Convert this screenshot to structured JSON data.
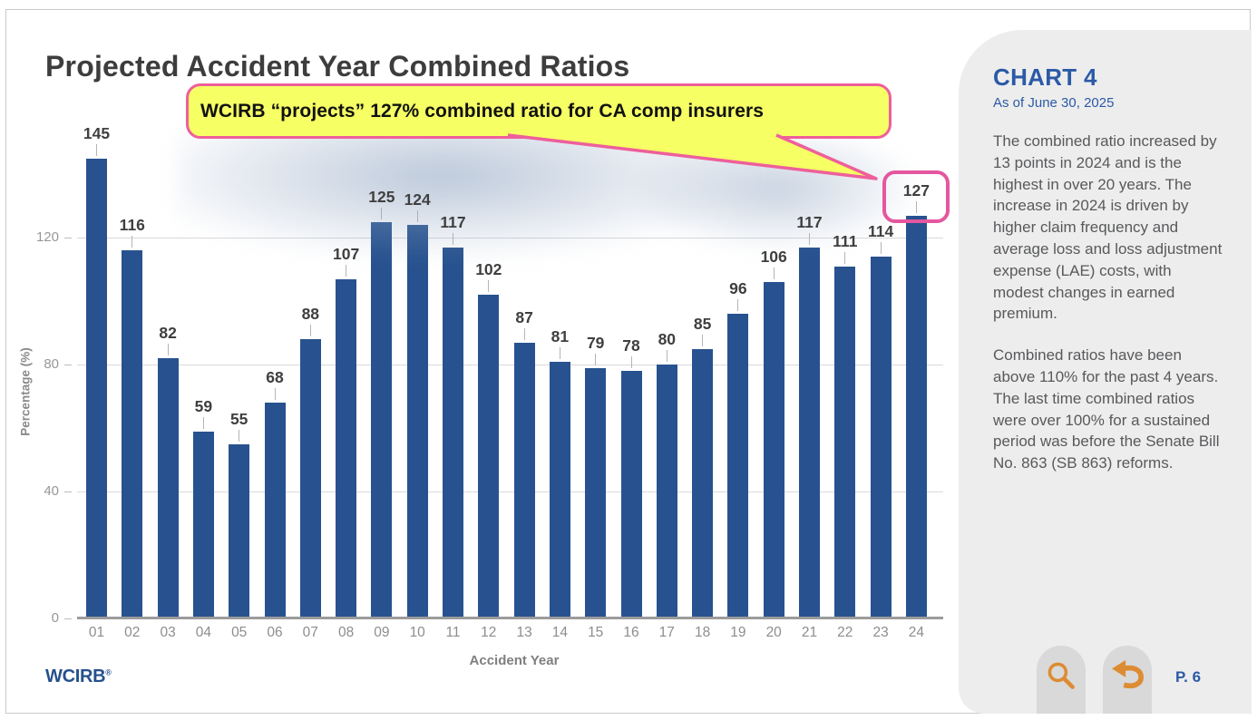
{
  "slide": {
    "title": "Projected Accident Year Combined Ratios"
  },
  "callout": {
    "text": "WCIRB “projects” 127% combined ratio for CA comp insurers",
    "fill_color": "#f6ff64",
    "border_color": "#ee5f9b",
    "highlighted_value": "127"
  },
  "chart_data": {
    "type": "bar",
    "title": "Projected Accident Year Combined Ratios",
    "xlabel": "Accident Year",
    "ylabel": "Percentage (%)",
    "categories": [
      "01",
      "02",
      "03",
      "04",
      "05",
      "06",
      "07",
      "08",
      "09",
      "10",
      "11",
      "12",
      "13",
      "14",
      "15",
      "16",
      "17",
      "18",
      "19",
      "20",
      "21",
      "22",
      "23",
      "24"
    ],
    "values": [
      145,
      116,
      82,
      59,
      55,
      68,
      88,
      107,
      125,
      124,
      117,
      102,
      87,
      81,
      79,
      78,
      80,
      85,
      96,
      106,
      117,
      111,
      114,
      127
    ],
    "yticks": [
      0,
      40,
      80,
      120
    ],
    "ylim": [
      0,
      152
    ],
    "grid": true,
    "legend": "none",
    "bar_color": "#27528f",
    "highlighted_category": "24"
  },
  "sidebar": {
    "heading": "CHART 4",
    "as_of": "As of June 30, 2025",
    "paragraphs": [
      "The combined ratio increased by 13 points in 2024 and is the highest in over 20 years. The increase in 2024 is driven by higher claim frequency and average loss and loss adjustment expense (LAE) costs, with modest changes in earned premium.",
      "Combined ratios have been above 110% for the past 4 years. The last time combined ratios were over 100% for a sustained period was before the Senate Bill No. 863 (SB 863) reforms."
    ],
    "accent_color": "#2b5aa6"
  },
  "footer": {
    "logo_text": "WCIRB",
    "logo_reg": "®",
    "page_label": "P. 6",
    "icon_color": "#dd8c33"
  }
}
